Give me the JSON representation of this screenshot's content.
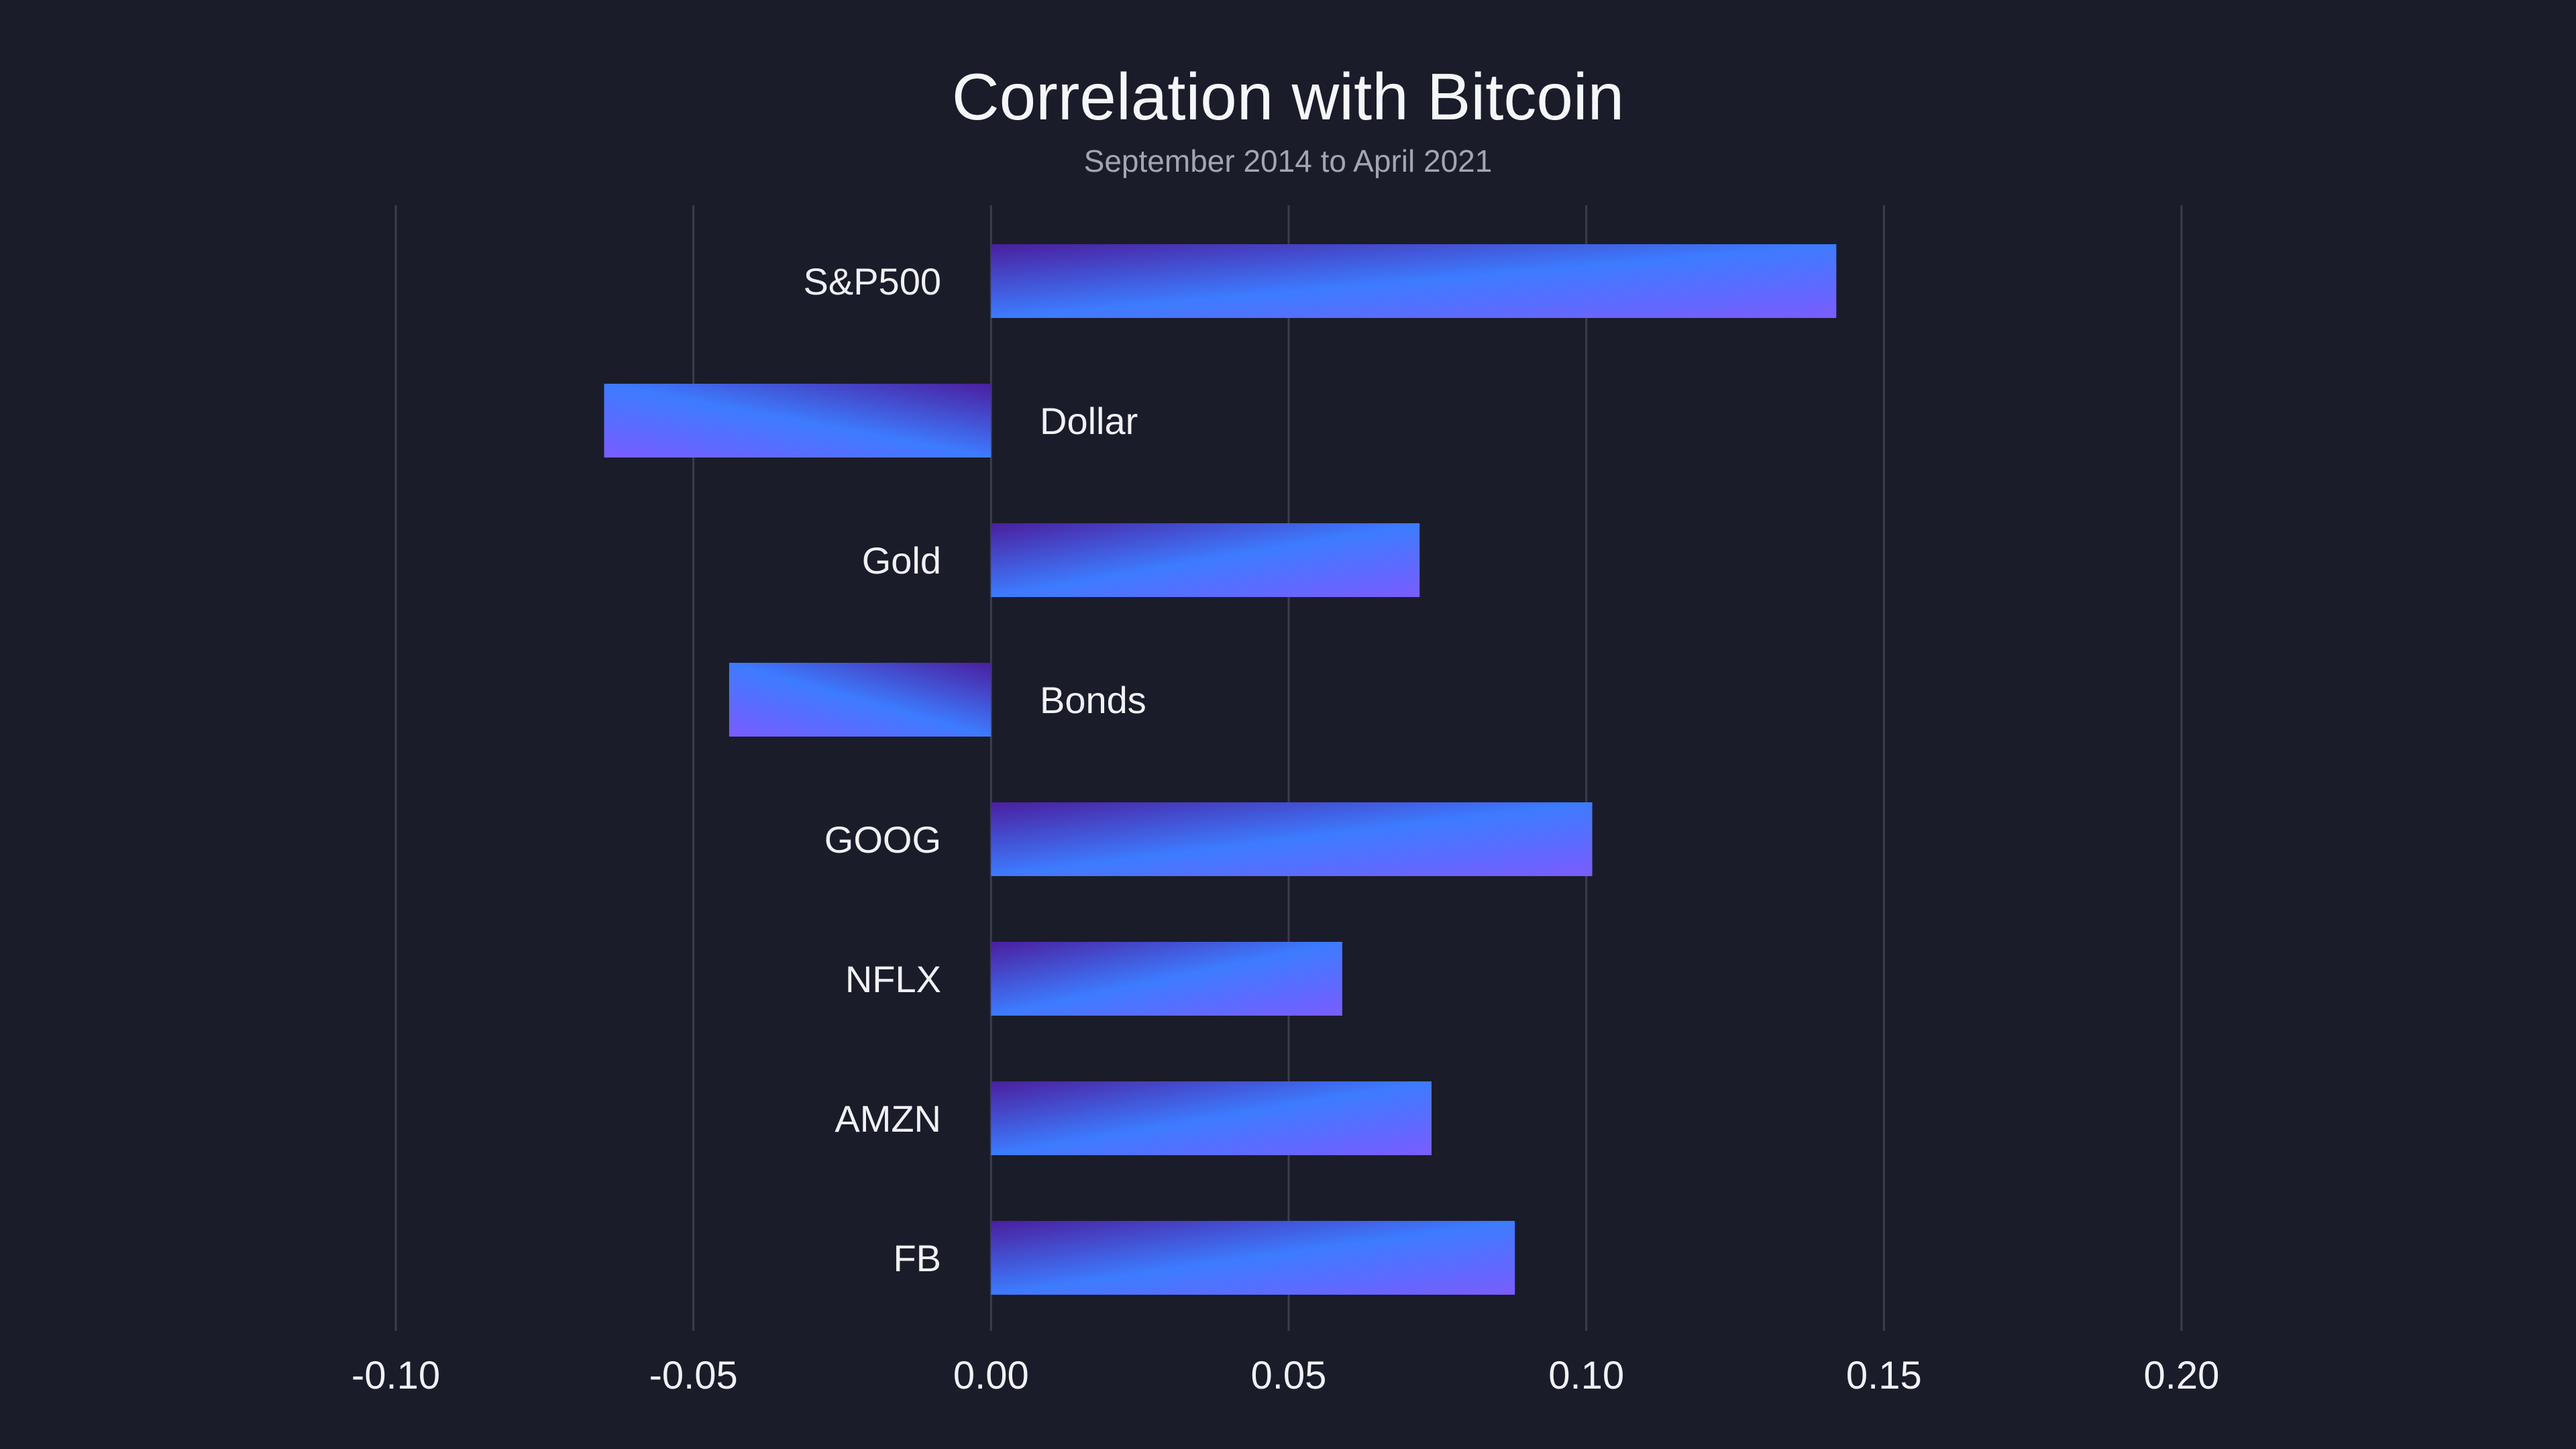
{
  "chart_data": {
    "type": "bar",
    "orientation": "horizontal",
    "title": "Correlation with Bitcoin",
    "subtitle": "September 2014 to April 2021",
    "xlabel": "",
    "ylabel": "",
    "categories": [
      "S&P500",
      "Dollar",
      "Gold",
      "Bonds",
      "GOOG",
      "NFLX",
      "AMZN",
      "FB"
    ],
    "values": [
      0.142,
      -0.065,
      0.072,
      -0.044,
      0.101,
      0.059,
      0.074,
      0.088
    ],
    "xlim": [
      -0.1,
      0.2
    ],
    "x_ticks": [
      "-0.10",
      "-0.05",
      "0.00",
      "0.05",
      "0.10",
      "0.15",
      "0.20"
    ],
    "grid": "vertical",
    "legend": "none",
    "colors": {
      "background": "#1a1c29",
      "grid": "#3a3d4c",
      "bar_gradient": [
        "#4a1f9e",
        "#3d7bff",
        "#7a5cff"
      ]
    }
  }
}
